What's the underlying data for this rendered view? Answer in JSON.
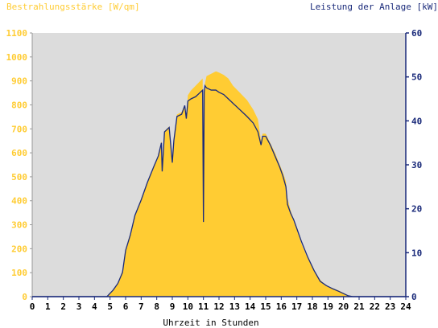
{
  "chart_data": {
    "type": "area",
    "title_left": "Bestrahlungsstärke [W/qm]",
    "title_right": "Leistung der Anlage [kW]",
    "xlabel": "Uhrzeit in Stunden",
    "xlim": [
      0,
      24
    ],
    "ylim_left": [
      0,
      1100
    ],
    "ylim_right": [
      0,
      60
    ],
    "x_ticks": [
      "0",
      "1",
      "2",
      "3",
      "4",
      "5",
      "6",
      "7",
      "8",
      "9",
      "10",
      "11",
      "12",
      "13",
      "14",
      "15",
      "16",
      "17",
      "18",
      "19",
      "20",
      "21",
      "22",
      "23",
      "24"
    ],
    "y_ticks_left": [
      "0",
      "100",
      "200",
      "300",
      "400",
      "500",
      "600",
      "700",
      "800",
      "900",
      "1000",
      "1100"
    ],
    "y_ticks_right": [
      "0",
      "10",
      "20",
      "30",
      "40",
      "50",
      "60"
    ],
    "grid": false,
    "colors": {
      "irradiance": "#FFCC33",
      "power": "#1a2a7a",
      "background": "#DCDCDC"
    },
    "series": [
      {
        "name": "Bestrahlungsstärke",
        "axis": "left",
        "x": [
          0,
          4.8,
          5.2,
          5.5,
          5.8,
          6.0,
          6.3,
          6.6,
          7.0,
          7.4,
          7.8,
          8.1,
          8.3,
          8.35,
          8.5,
          8.8,
          9.0,
          9.1,
          9.3,
          9.6,
          9.8,
          9.9,
          10.0,
          10.2,
          10.5,
          10.8,
          10.95,
          11.0,
          11.05,
          11.1,
          11.2,
          11.5,
          11.8,
          12.0,
          12.3,
          12.6,
          12.9,
          13.2,
          13.5,
          13.8,
          14.2,
          14.5,
          14.7,
          14.8,
          15.0,
          15.3,
          15.6,
          15.9,
          16.1,
          16.3,
          16.4,
          16.6,
          16.8,
          17.0,
          17.3,
          17.7,
          18.1,
          18.5,
          18.9,
          19.3,
          19.7,
          20.0,
          20.3,
          20.6,
          24
        ],
        "y": [
          0,
          0,
          25,
          55,
          110,
          200,
          260,
          340,
          410,
          480,
          540,
          590,
          650,
          530,
          690,
          710,
          560,
          650,
          760,
          770,
          800,
          740,
          840,
          860,
          880,
          900,
          910,
          330,
          850,
          890,
          920,
          930,
          940,
          935,
          925,
          910,
          880,
          860,
          840,
          820,
          780,
          740,
          650,
          680,
          680,
          640,
          600,
          550,
          520,
          480,
          410,
          360,
          320,
          280,
          220,
          160,
          110,
          70,
          45,
          35,
          25,
          15,
          5,
          0,
          0
        ]
      },
      {
        "name": "Leistung der Anlage",
        "axis": "right",
        "x": [
          0,
          4.8,
          5.2,
          5.5,
          5.8,
          6.0,
          6.3,
          6.6,
          7.0,
          7.4,
          7.8,
          8.1,
          8.3,
          8.35,
          8.5,
          8.8,
          9.0,
          9.1,
          9.3,
          9.6,
          9.8,
          9.9,
          10.0,
          10.2,
          10.5,
          10.8,
          10.95,
          11.0,
          11.05,
          11.1,
          11.2,
          11.5,
          11.8,
          12.0,
          12.3,
          12.6,
          12.9,
          13.2,
          13.5,
          13.8,
          14.2,
          14.5,
          14.7,
          14.8,
          15.0,
          15.3,
          15.6,
          15.9,
          16.1,
          16.3,
          16.4,
          16.6,
          16.8,
          17.0,
          17.3,
          17.7,
          18.1,
          18.5,
          18.9,
          19.3,
          19.7,
          20.0,
          20.3,
          20.6,
          24
        ],
        "y": [
          0,
          0,
          1.5,
          3.0,
          5.5,
          10.5,
          14.0,
          18.5,
          22.0,
          26.0,
          29.5,
          32.0,
          35.0,
          28.5,
          37.5,
          38.5,
          30.5,
          35.5,
          41.0,
          41.5,
          43.5,
          40.5,
          44.5,
          45.0,
          45.5,
          46.5,
          47.0,
          17.0,
          46.5,
          48.0,
          47.5,
          47.0,
          47.0,
          46.5,
          46.0,
          45.0,
          44.0,
          43.0,
          42.0,
          41.0,
          39.5,
          37.5,
          34.5,
          36.5,
          36.5,
          34.5,
          32.0,
          29.5,
          27.5,
          25.0,
          21.0,
          19.0,
          17.5,
          15.5,
          12.5,
          9.0,
          6.0,
          3.5,
          2.5,
          1.8,
          1.2,
          0.7,
          0.2,
          0,
          0
        ]
      }
    ]
  }
}
